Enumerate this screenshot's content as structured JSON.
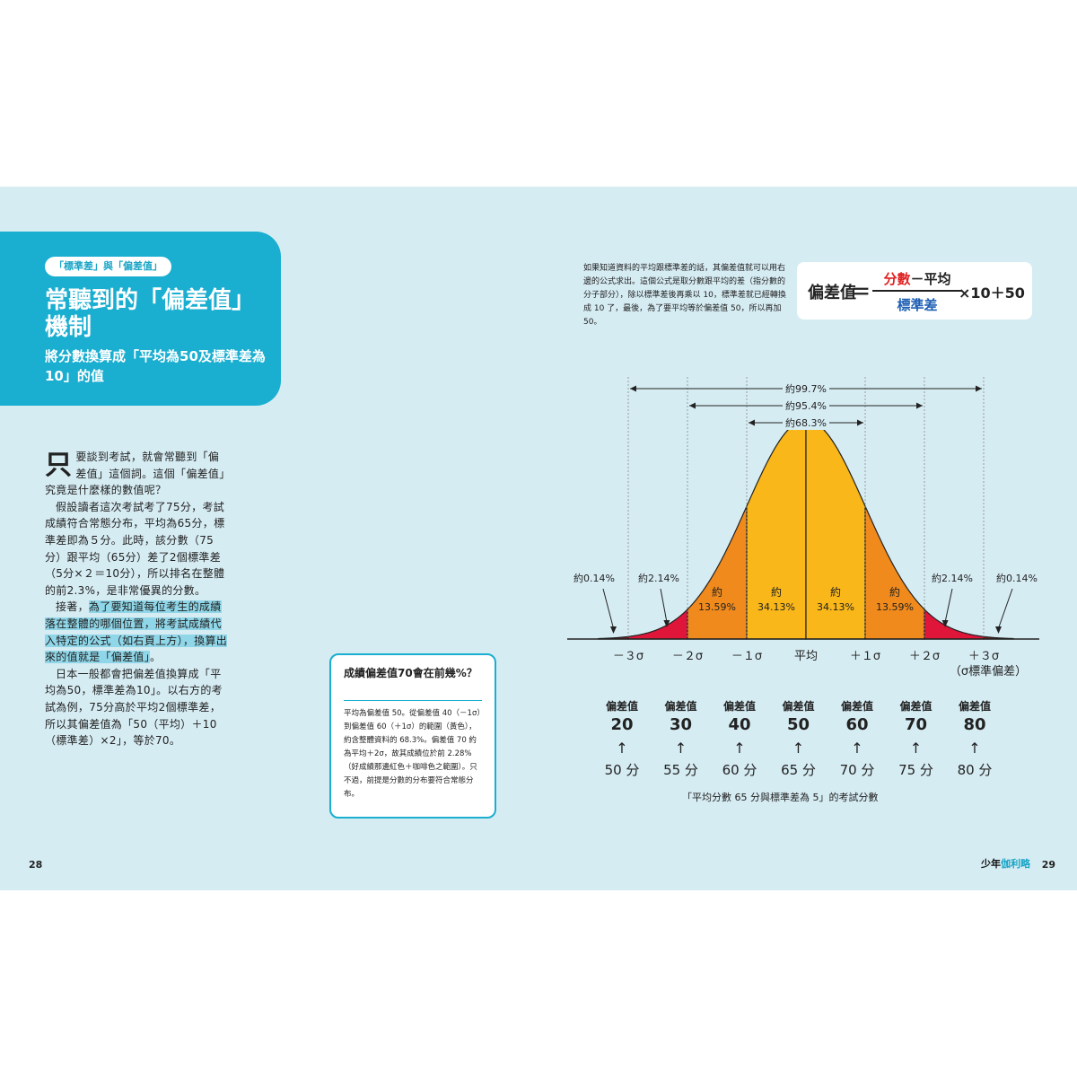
{
  "left_page": {
    "tag": "「標準差」與「偏差值」",
    "title": "常聽到的「偏差值」機制",
    "subtitle": "將分數換算成「平均為50及標準差為10」的值",
    "dropcap": "只",
    "para1": "要談到考試，就會常聽到「偏差值」這個詞。這個「偏差值」究竟是什麼樣的數值呢？",
    "para2": "假設讀者這次考試考了75分，考試成績符合常態分布，平均為65分，標準差即為５分。此時，該分數（75分）跟平均（65分）差了2個標準差（5分×２＝10分），所以排名在整體的前2.3%，是非常優異的分數。",
    "para3_pre": "接著，",
    "para3_hl": "為了要知道每位考生的成績落在整體的哪個位置，將考試成績代入特定的公式（如右頁上方），換算出來的值就是「偏差值」",
    "para3_post": "。",
    "para4": "日本一般都會把偏差值換算成「平均為50，標準差為10」。以右方的考試為例，75分高於平均2個標準差，所以其偏差值為「50（平均）＋10（標準差）×2」，等於70。",
    "page_number": "28"
  },
  "right_page": {
    "intro": "如果知道資料的平均跟標準差的話，其偏差值就可以用右邊的公式求出。這個公式是取分數跟平均的差（指分數的分子部分），除以標準差後再乘以 10，標準差就已經轉換成 10 了，最後，為了要平均等於偏差值 50，所以再加 50。",
    "formula": {
      "left": "偏差值",
      "eq": "＝",
      "num_red": "分數",
      "num_rest": "－平均",
      "den": "標準差",
      "right": "×10＋50"
    },
    "question": {
      "title": "成績偏差值70會在前幾%？",
      "body": "平均為偏差值 50。從偏差值 40（－1σ）到偏差值 60（＋1σ）的範圍（黃色），約含整體資料的 68.3%。偏差值 70 約為平均＋2σ，故其成績位於前 2.28%（好成績那邊紅色＋咖啡色之範圍）。只不過，前提是分數的分布要符合常態分布。"
    },
    "score_table": [
      {
        "label": "偏差值",
        "value": "20",
        "arrow": "↑",
        "score": "50 分"
      },
      {
        "label": "偏差值",
        "value": "30",
        "arrow": "↑",
        "score": "55 分"
      },
      {
        "label": "偏差值",
        "value": "40",
        "arrow": "↑",
        "score": "60 分"
      },
      {
        "label": "偏差值",
        "value": "50",
        "arrow": "↑",
        "score": "65 分"
      },
      {
        "label": "偏差值",
        "value": "60",
        "arrow": "↑",
        "score": "70 分"
      },
      {
        "label": "偏差值",
        "value": "70",
        "arrow": "↑",
        "score": "75 分"
      },
      {
        "label": "偏差值",
        "value": "80",
        "arrow": "↑",
        "score": "80 分"
      }
    ],
    "caption": "「平均分數 65 分與標準差為 5」的考試分數",
    "brand_1": "少年",
    "brand_2": "伽利略",
    "page_number": "29"
  },
  "chart_data": {
    "type": "area",
    "x_labels": [
      "－３σ",
      "－２σ",
      "－１σ",
      "平均",
      "＋１σ",
      "＋２σ",
      "＋３σ"
    ],
    "x_note": "（σ標準偏差）",
    "regions": [
      {
        "from": -3.5,
        "to": -3,
        "color": "#8b1a1a",
        "label": "約0.14%"
      },
      {
        "from": -3,
        "to": -2,
        "color": "#e0153a",
        "label": "約2.14%"
      },
      {
        "from": -2,
        "to": -1,
        "color": "#f08a1c",
        "label": "約\n13.59%"
      },
      {
        "from": -1,
        "to": 0,
        "color": "#f9b71a",
        "label": "約\n34.13%"
      },
      {
        "from": 0,
        "to": 1,
        "color": "#f9b71a",
        "label": "約\n34.13%"
      },
      {
        "from": 1,
        "to": 2,
        "color": "#f08a1c",
        "label": "約\n13.59%"
      },
      {
        "from": 2,
        "to": 3,
        "color": "#e0153a",
        "label": "約2.14%"
      },
      {
        "from": 3,
        "to": 3.5,
        "color": "#8b1a1a",
        "label": "約0.14%"
      }
    ],
    "spans": [
      {
        "sigma": 3,
        "label": "約99.7%"
      },
      {
        "sigma": 2,
        "label": "約95.4%"
      },
      {
        "sigma": 1,
        "label": "約68.3%"
      }
    ]
  }
}
